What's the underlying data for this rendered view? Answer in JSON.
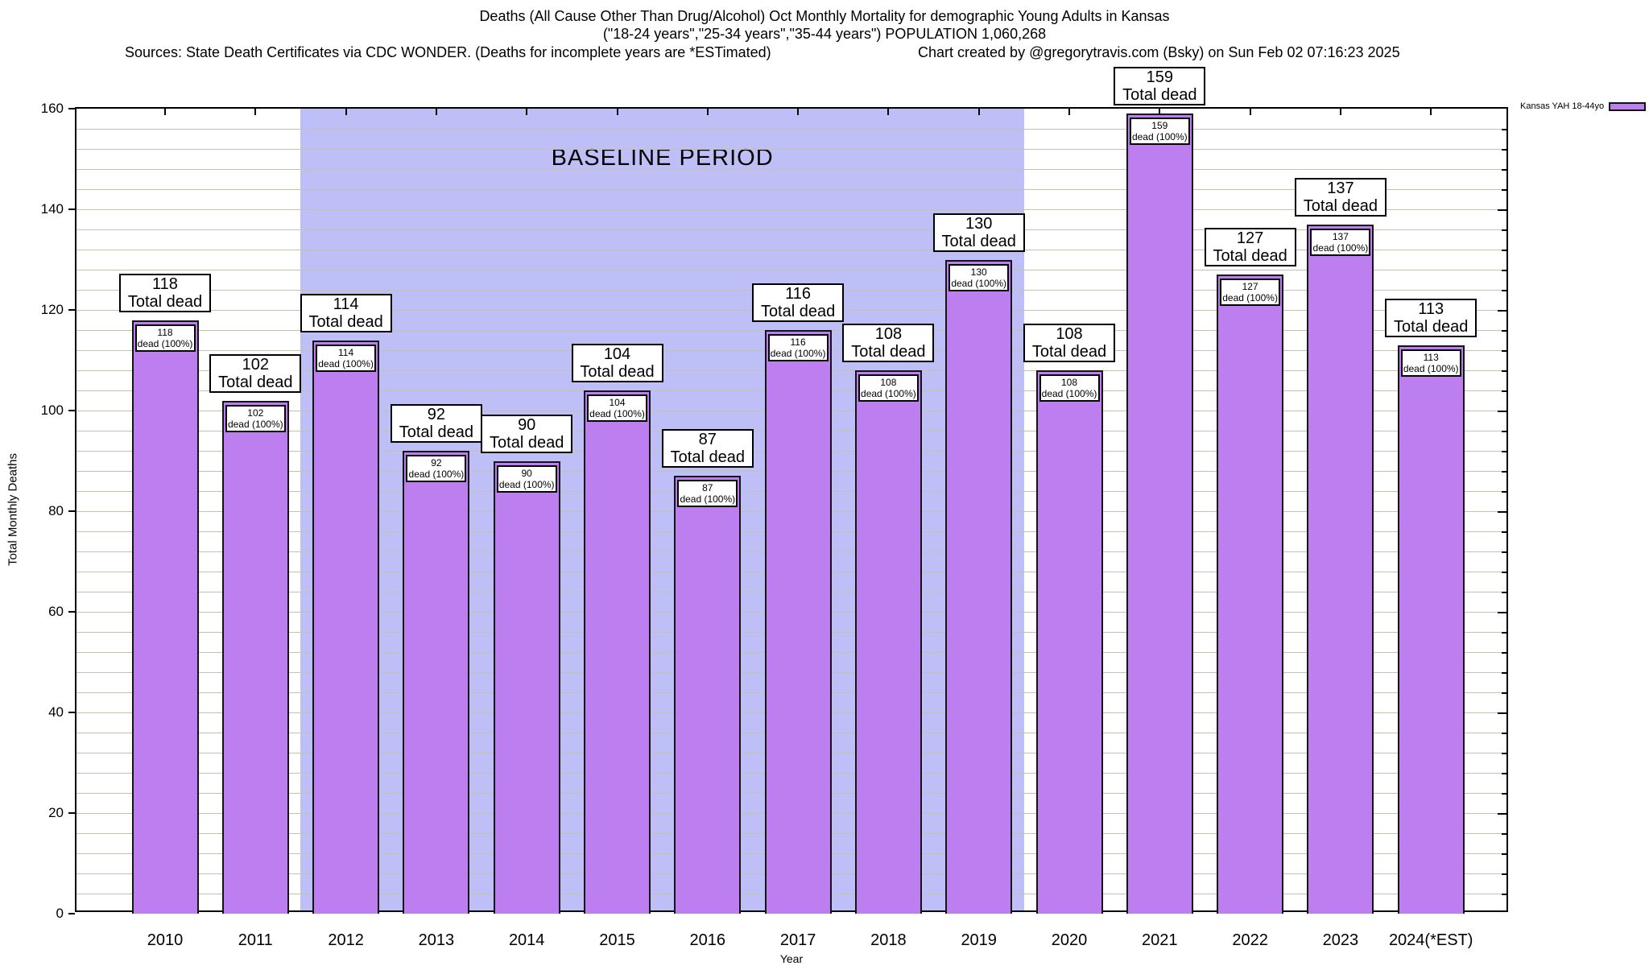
{
  "title_line1": "Deaths (All Cause Other Than Drug/Alcohol) Oct Monthly Mortality for demographic Young Adults in Kansas",
  "title_line2": "(\"18-24 years\",\"25-34 years\",\"35-44 years\") POPULATION 1,060,268",
  "sources_note": "Sources: State Death Certificates via CDC WONDER. (Deaths for incomplete years are *ESTimated)",
  "credit": "Chart created by @gregorytravis.com (Bsky) on Sun Feb 02 07:16:23 2025",
  "legend": {
    "label": "Kansas YAH 18-44yo",
    "swatch_color": "#bd7ef0"
  },
  "baseline_period": {
    "label": "BASELINE PERIOD",
    "start_category": "2012",
    "end_category": "2019",
    "band_color": "#bfbff7"
  },
  "bar_label_text": {
    "outer_suffix": "Total dead",
    "inner_suffix": "dead (100%)"
  },
  "colors": {
    "bar_fill": "#bd7ef0",
    "bar_border": "#141414",
    "grid": "#c3c3aa",
    "band": "#bfbff7"
  },
  "chart_data": {
    "type": "bar",
    "title": "Deaths (All Cause Other Than Drug/Alcohol) Oct Monthly Mortality for demographic Young Adults in Kansas (\"18-24 years\",\"25-34 years\",\"35-44 years\") POPULATION 1,060,268",
    "xlabel": "Year",
    "ylabel": "Total Monthly Deaths",
    "ylim": [
      0,
      160
    ],
    "ytick_step": 20,
    "minor_grid_step": 4,
    "grid": true,
    "legend_position": "top-right",
    "series_name": "Kansas YAH 18-44yo",
    "categories": [
      "2010",
      "2011",
      "2012",
      "2013",
      "2014",
      "2015",
      "2016",
      "2017",
      "2018",
      "2019",
      "2020",
      "2021",
      "2022",
      "2023",
      "2024(*EST)"
    ],
    "values": [
      118,
      102,
      114,
      92,
      90,
      104,
      87,
      116,
      108,
      130,
      108,
      159,
      127,
      137,
      113
    ],
    "baseline_categories": [
      "2012",
      "2013",
      "2014",
      "2015",
      "2016",
      "2017",
      "2018",
      "2019"
    ],
    "annotations": [
      "BASELINE PERIOD"
    ]
  }
}
